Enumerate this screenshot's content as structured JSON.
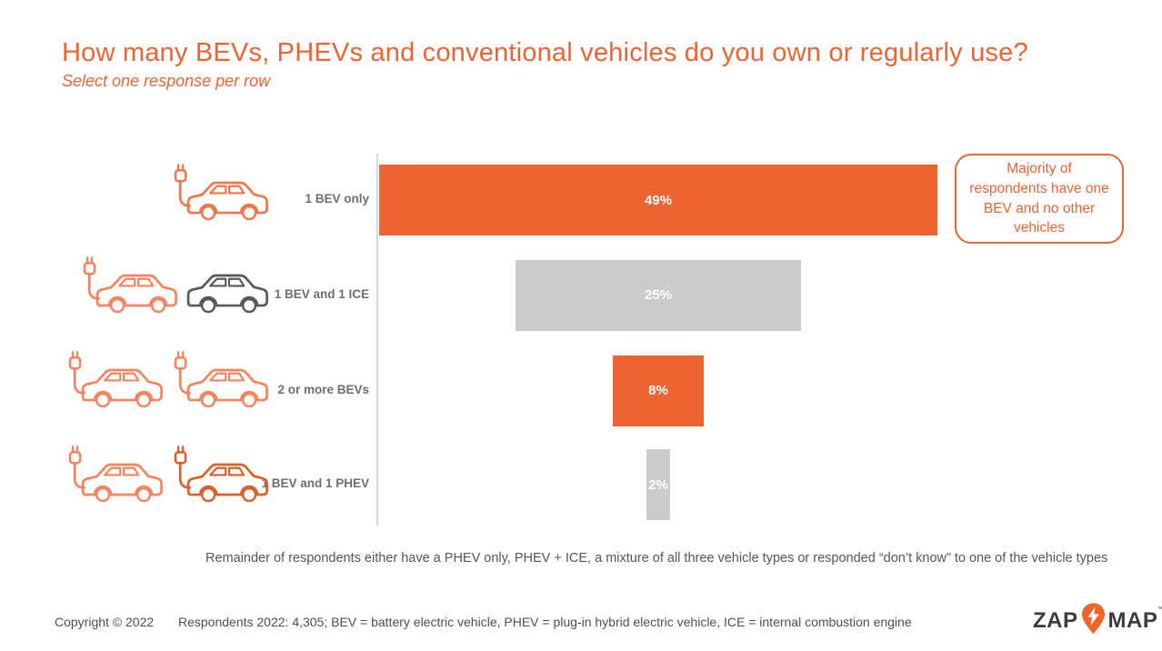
{
  "slide": {
    "title": "How many BEVs, PHEVs and conventional vehicles do you own or regularly use?",
    "subtitle": "Select one response per row",
    "accent_color": "#ED6332",
    "callout": {
      "text": "Majority of respondents have one BEV and no other vehicles"
    },
    "note": "Remainder of respondents either have a PHEV only, PHEV + ICE, a mixture of all three vehicle types or responded “don’t know” to one of the vehicle types",
    "footer": {
      "copyright": "Copyright © 2022",
      "respondents": "Respondents 2022: 4,305; BEV = battery electric vehicle, PHEV = plug-in hybrid electric vehicle, ICE = internal combustion engine"
    },
    "logo": {
      "zap": "ZAP",
      "map": "MAP",
      "tm": "™",
      "pin_color": "#F2632A",
      "text_color": "#3C3C3B"
    }
  },
  "chart_data": {
    "type": "bar",
    "orientation": "horizontal-centered",
    "title": "How many BEVs, PHEVs and conventional vehicles do you own or regularly use?",
    "categories": [
      "1 BEV only",
      "1 BEV and 1 ICE",
      "2 or more BEVs",
      "1 BEV and 1 PHEV"
    ],
    "values": [
      49,
      25,
      8,
      2
    ],
    "value_labels": [
      "49%",
      "25%",
      "8%",
      "2%"
    ],
    "bar_colors": [
      "#ED6332",
      "#CBCBCB",
      "#ED6332",
      "#CBCBCB"
    ],
    "xlim": [
      0,
      100
    ],
    "grid": false,
    "legend": false,
    "row_icons": [
      [
        {
          "type": "ev-car",
          "color": "#F0774B"
        }
      ],
      [
        {
          "type": "ev-car",
          "color": "#F5845E"
        },
        {
          "type": "ice-car",
          "color": "#59595B"
        }
      ],
      [
        {
          "type": "ev-car",
          "color": "#F5845E"
        },
        {
          "type": "ev-car",
          "color": "#F5845E"
        }
      ],
      [
        {
          "type": "ev-car",
          "color": "#F5845E"
        },
        {
          "type": "ev-car",
          "color": "#DC5E28"
        }
      ]
    ]
  }
}
